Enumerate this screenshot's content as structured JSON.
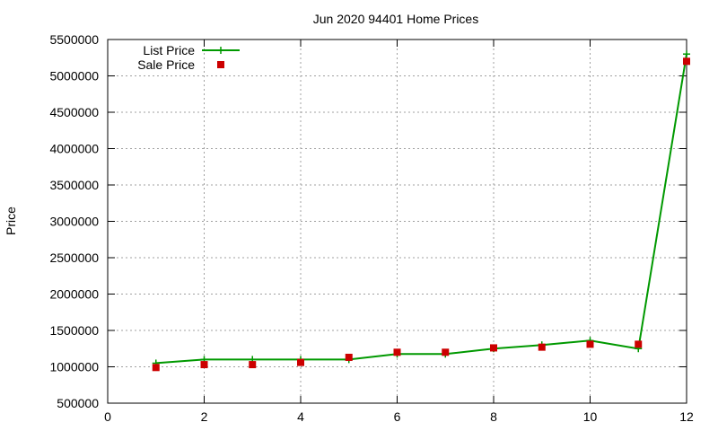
{
  "chart_data": {
    "type": "line",
    "title": "Jun 2020 94401 Home Prices",
    "xlabel": "",
    "ylabel": "Price",
    "xlim": [
      0,
      12
    ],
    "ylim": [
      500000,
      5500000
    ],
    "x_ticks": [
      0,
      2,
      4,
      6,
      8,
      10,
      12
    ],
    "y_ticks": [
      500000,
      1000000,
      1500000,
      2000000,
      2500000,
      3000000,
      3500000,
      4000000,
      4500000,
      5000000,
      5500000
    ],
    "grid": true,
    "legend_position": "top-left",
    "series": [
      {
        "name": "List Price",
        "style": "line-plus",
        "color": "#009900",
        "x": [
          1,
          2,
          3,
          4,
          5,
          6,
          7,
          8,
          9,
          10,
          11,
          12
        ],
        "y": [
          1050000,
          1100000,
          1100000,
          1100000,
          1100000,
          1175000,
          1175000,
          1250000,
          1300000,
          1360000,
          1250000,
          5300000
        ]
      },
      {
        "name": "Sale Price",
        "style": "square",
        "color": "#cc0000",
        "x": [
          1,
          2,
          3,
          4,
          5,
          6,
          7,
          8,
          9,
          10,
          11,
          12
        ],
        "y": [
          990000,
          1030000,
          1030000,
          1060000,
          1130000,
          1200000,
          1200000,
          1260000,
          1270000,
          1310000,
          1310000,
          5200000
        ]
      }
    ]
  }
}
